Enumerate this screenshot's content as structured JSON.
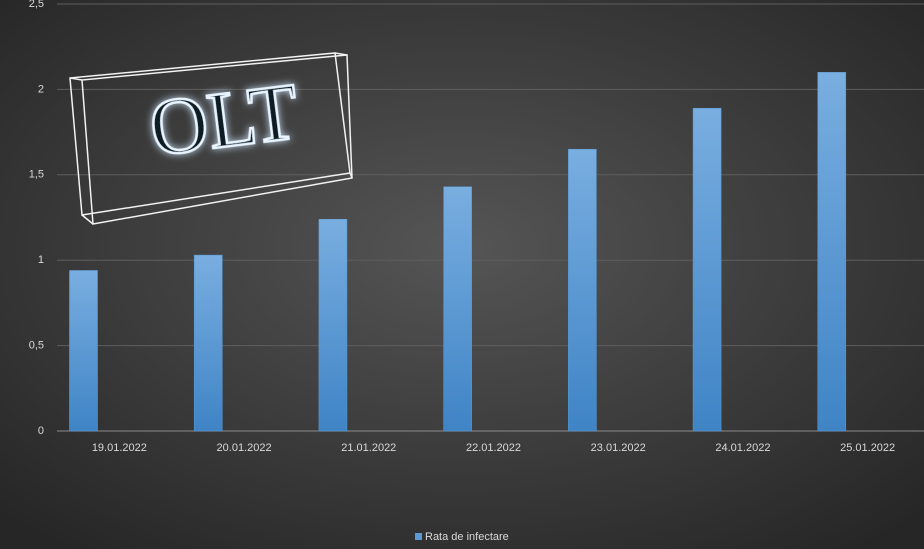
{
  "chart_data": {
    "type": "bar",
    "annotation": "OLT",
    "categories": [
      "19.01.2022",
      "20.01.2022",
      "21.01.2022",
      "22.01.2022",
      "23.01.2022",
      "24.01.2022",
      "25.01.2022"
    ],
    "series": [
      {
        "name": "Rata de infectare",
        "color": "#5b9bd5",
        "values": [
          0.94,
          1.03,
          1.24,
          1.43,
          1.65,
          1.89,
          2.1
        ]
      }
    ],
    "ylim": [
      0,
      2.5
    ],
    "yticks": [
      0,
      {
        "value": 0.5,
        "label": "0,5"
      },
      1,
      {
        "value": 1.5,
        "label": "1,5"
      },
      2,
      {
        "value": 2.5,
        "label": "2,5"
      }
    ],
    "grid": true,
    "legend": "bottom"
  }
}
